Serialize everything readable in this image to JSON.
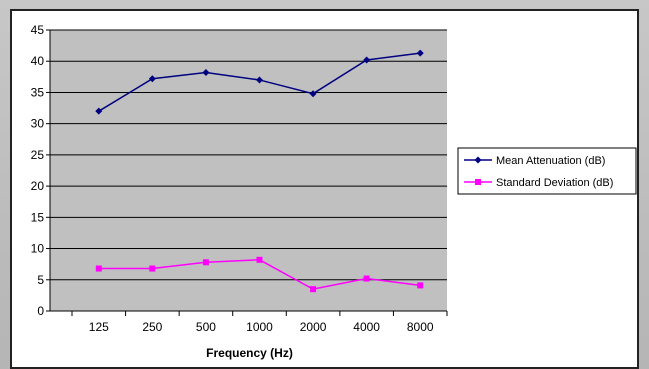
{
  "colors": {
    "plot_bg": "#c0c0c0",
    "mean": "#000080",
    "std": "#ff00ff",
    "grid": "#000000"
  },
  "chart_data": {
    "type": "line",
    "title": "",
    "xlabel": "Frequency (Hz)",
    "ylabel": "",
    "categories": [
      "125",
      "250",
      "500",
      "1000",
      "2000",
      "4000",
      "8000"
    ],
    "ylim": [
      0,
      45
    ],
    "yticks": [
      0,
      5,
      10,
      15,
      20,
      25,
      30,
      35,
      40,
      45
    ],
    "grid": true,
    "legend": "right",
    "series": [
      {
        "name": "Mean Attenuation (dB)",
        "marker": "diamond",
        "color": "#000080",
        "values": [
          32.0,
          37.2,
          38.2,
          37.0,
          34.8,
          40.2,
          41.3
        ]
      },
      {
        "name": "Standard Deviation (dB)",
        "marker": "square",
        "color": "#ff00ff",
        "values": [
          6.8,
          6.8,
          7.8,
          8.2,
          3.5,
          5.2,
          4.1
        ]
      }
    ]
  }
}
